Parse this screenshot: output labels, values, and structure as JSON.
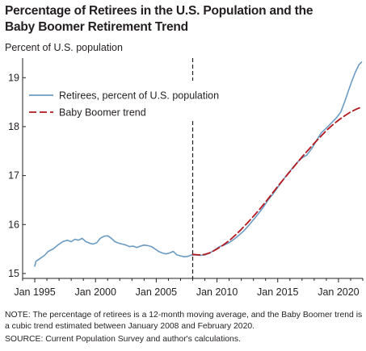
{
  "title_line1": "Percentage of Retirees in the U.S. Population and the",
  "title_line2": "Baby Boomer Retirement Trend",
  "note": "NOTE: The percentage of retirees is a 12-month moving average, and the Baby Boomer trend is a cubic trend estimated between January 2008 and February 2020.",
  "source": "SOURCE: Current Population Survey and author's calculations.",
  "colors": {
    "retirees": "#6b9bc3",
    "trend": "#b3191f",
    "axis": "#231f20"
  },
  "chart_data": {
    "type": "line",
    "title": "Percentage of Retirees in the U.S. Population and the Baby Boomer Retirement Trend",
    "ylabel": "Percent of U.S. population",
    "xlabel": "",
    "x_ticks": [
      "Jan 1995",
      "Jan 2000",
      "Jan 2005",
      "Jan 2010",
      "Jan 2015",
      "Jan 2020"
    ],
    "x_tick_values": [
      1995,
      2000,
      2005,
      2010,
      2015,
      2020
    ],
    "y_ticks": [
      15,
      16,
      17,
      18,
      19
    ],
    "xlim": [
      1994,
      2022
    ],
    "ylim": [
      14.9,
      19.4
    ],
    "vertical_marker_x": 2008.0,
    "legend_placement": "upper-left",
    "grid": false,
    "series": [
      {
        "name": "Retirees, percent of U.S. population",
        "style": "solid",
        "points": [
          [
            1995.0,
            15.15
          ],
          [
            1995.1,
            15.25
          ],
          [
            1995.4,
            15.3
          ],
          [
            1995.8,
            15.37
          ],
          [
            1996.1,
            15.45
          ],
          [
            1996.5,
            15.5
          ],
          [
            1996.9,
            15.58
          ],
          [
            1997.3,
            15.65
          ],
          [
            1997.7,
            15.68
          ],
          [
            1998.0,
            15.65
          ],
          [
            1998.3,
            15.7
          ],
          [
            1998.6,
            15.68
          ],
          [
            1998.9,
            15.72
          ],
          [
            1999.2,
            15.65
          ],
          [
            1999.5,
            15.62
          ],
          [
            1999.8,
            15.6
          ],
          [
            2000.1,
            15.63
          ],
          [
            2000.4,
            15.72
          ],
          [
            2000.7,
            15.76
          ],
          [
            2001.0,
            15.77
          ],
          [
            2001.3,
            15.72
          ],
          [
            2001.6,
            15.65
          ],
          [
            2001.9,
            15.62
          ],
          [
            2002.2,
            15.6
          ],
          [
            2002.5,
            15.58
          ],
          [
            2002.8,
            15.55
          ],
          [
            2003.1,
            15.56
          ],
          [
            2003.4,
            15.53
          ],
          [
            2003.7,
            15.56
          ],
          [
            2004.0,
            15.58
          ],
          [
            2004.3,
            15.57
          ],
          [
            2004.6,
            15.55
          ],
          [
            2004.9,
            15.5
          ],
          [
            2005.2,
            15.45
          ],
          [
            2005.5,
            15.42
          ],
          [
            2005.8,
            15.4
          ],
          [
            2006.1,
            15.42
          ],
          [
            2006.4,
            15.45
          ],
          [
            2006.7,
            15.38
          ],
          [
            2007.0,
            15.36
          ],
          [
            2007.3,
            15.34
          ],
          [
            2007.6,
            15.35
          ],
          [
            2007.9,
            15.38
          ],
          [
            2008.2,
            15.38
          ],
          [
            2008.6,
            15.37
          ],
          [
            2009.0,
            15.38
          ],
          [
            2009.4,
            15.42
          ],
          [
            2009.8,
            15.48
          ],
          [
            2010.2,
            15.55
          ],
          [
            2010.6,
            15.58
          ],
          [
            2011.0,
            15.63
          ],
          [
            2011.4,
            15.7
          ],
          [
            2011.8,
            15.78
          ],
          [
            2012.2,
            15.87
          ],
          [
            2012.6,
            15.98
          ],
          [
            2013.0,
            16.1
          ],
          [
            2013.4,
            16.22
          ],
          [
            2013.8,
            16.35
          ],
          [
            2014.2,
            16.5
          ],
          [
            2014.6,
            16.62
          ],
          [
            2015.0,
            16.76
          ],
          [
            2015.4,
            16.9
          ],
          [
            2015.8,
            17.03
          ],
          [
            2016.2,
            17.15
          ],
          [
            2016.6,
            17.27
          ],
          [
            2017.0,
            17.36
          ],
          [
            2017.4,
            17.42
          ],
          [
            2017.8,
            17.55
          ],
          [
            2018.2,
            17.72
          ],
          [
            2018.6,
            17.88
          ],
          [
            2019.0,
            17.97
          ],
          [
            2019.4,
            18.07
          ],
          [
            2019.8,
            18.17
          ],
          [
            2020.2,
            18.3
          ],
          [
            2020.5,
            18.5
          ],
          [
            2020.8,
            18.72
          ],
          [
            2021.1,
            18.93
          ],
          [
            2021.4,
            19.12
          ],
          [
            2021.7,
            19.27
          ],
          [
            2021.9,
            19.32
          ]
        ]
      },
      {
        "name": "Baby Boomer trend",
        "style": "dashed",
        "points": [
          [
            2008.0,
            15.39
          ],
          [
            2008.5,
            15.38
          ],
          [
            2009.0,
            15.39
          ],
          [
            2009.5,
            15.43
          ],
          [
            2010.0,
            15.5
          ],
          [
            2010.5,
            15.58
          ],
          [
            2011.0,
            15.67
          ],
          [
            2011.5,
            15.78
          ],
          [
            2012.0,
            15.9
          ],
          [
            2012.5,
            16.03
          ],
          [
            2013.0,
            16.17
          ],
          [
            2013.5,
            16.31
          ],
          [
            2014.0,
            16.46
          ],
          [
            2014.5,
            16.62
          ],
          [
            2015.0,
            16.78
          ],
          [
            2015.5,
            16.93
          ],
          [
            2016.0,
            17.08
          ],
          [
            2016.5,
            17.23
          ],
          [
            2017.0,
            17.38
          ],
          [
            2017.5,
            17.52
          ],
          [
            2018.0,
            17.66
          ],
          [
            2018.5,
            17.79
          ],
          [
            2019.0,
            17.92
          ],
          [
            2019.5,
            18.03
          ],
          [
            2020.0,
            18.13
          ],
          [
            2020.5,
            18.22
          ],
          [
            2021.0,
            18.3
          ],
          [
            2021.5,
            18.36
          ],
          [
            2021.9,
            18.4
          ]
        ]
      }
    ]
  }
}
